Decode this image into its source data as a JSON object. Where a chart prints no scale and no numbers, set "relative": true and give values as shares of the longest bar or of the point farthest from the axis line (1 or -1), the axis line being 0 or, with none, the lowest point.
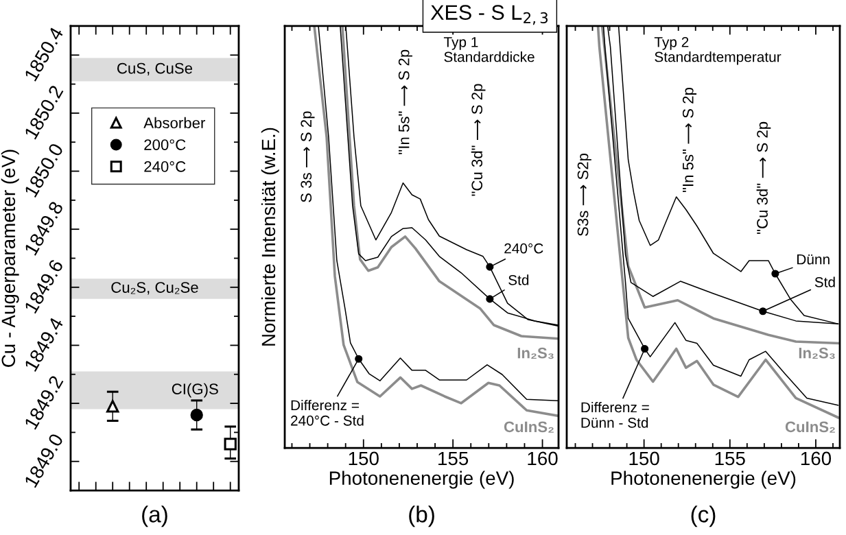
{
  "chart_data": [
    {
      "type": "scatter",
      "subtitle": "(a)",
      "ylabel": "Cu - Augerparameter (eV)",
      "categories": [
        null,
        null,
        null,
        null,
        null,
        null,
        null,
        null,
        null,
        null
      ],
      "ylim": [
        1848.9,
        1850.5
      ],
      "yticks": [
        {
          "value": 1849.0,
          "label": "1849.0"
        },
        {
          "value": 1849.1,
          "label": null
        },
        {
          "value": 1849.2,
          "label": "1849.2"
        },
        {
          "value": 1849.3,
          "label": null
        },
        {
          "value": 1849.4,
          "label": "1849.4"
        },
        {
          "value": 1849.5,
          "label": null
        },
        {
          "value": 1849.6,
          "label": "1849.6"
        },
        {
          "value": 1849.7,
          "label": null
        },
        {
          "value": 1849.8,
          "label": "1849.8"
        },
        {
          "value": 1849.9,
          "label": null
        },
        {
          "value": 1850.0,
          "label": "1850.0"
        },
        {
          "value": 1850.1,
          "label": null
        },
        {
          "value": 1850.2,
          "label": "1850.2"
        },
        {
          "value": 1850.3,
          "label": null
        },
        {
          "value": 1850.4,
          "label": "1850.4"
        }
      ],
      "tick_labels": "y",
      "legend": "top left",
      "grid": false,
      "bands": [
        {
          "axis": "y",
          "from": 1850.31,
          "to": 1850.39,
          "label": "CuS, CuSe",
          "color": "#dcdcdc"
        },
        {
          "axis": "y",
          "from": 1849.56,
          "to": 1849.63,
          "label": "Cu₂S, Cu₂Se",
          "color": "#dcdcdc"
        },
        {
          "axis": "y",
          "from": 1849.18,
          "to": 1849.31,
          "label": "CI(G)S",
          "color": "#dcdcdc"
        }
      ],
      "series": [
        {
          "name": "Absorber",
          "color": "#000000",
          "marker": "triangle",
          "values": [
            null,
            null,
            1849.19,
            null,
            null,
            null,
            null,
            null,
            null,
            null
          ],
          "errors": [
            null,
            null,
            [
              1849.14,
              1849.24
            ],
            null,
            null,
            null,
            null,
            null,
            null,
            null
          ]
        },
        {
          "name": "200°C",
          "color": "#000000",
          "marker": "circle",
          "values": [
            null,
            null,
            null,
            null,
            null,
            null,
            null,
            1849.16,
            null,
            null
          ],
          "errors": [
            null,
            null,
            null,
            null,
            null,
            null,
            null,
            [
              1849.11,
              1849.21
            ],
            null,
            null
          ]
        },
        {
          "name": "240°C",
          "color": "#000000",
          "marker": "square",
          "values": [
            null,
            null,
            null,
            null,
            null,
            null,
            null,
            null,
            null,
            1849.06
          ],
          "errors": [
            null,
            null,
            null,
            null,
            null,
            null,
            null,
            null,
            null,
            [
              1849.01,
              1849.12
            ]
          ]
        }
      ]
    },
    {
      "type": "line",
      "relative": true,
      "title": "XES - S L$_{2,3}$",
      "subtitle": "(b)",
      "xlabel": "Photonenenergie (eV)",
      "ylabel": "Normierte Intensität (w.E.)",
      "xlim": [
        145.6,
        160.9
      ],
      "xticks": [
        {
          "value": 146,
          "label": null
        },
        {
          "value": 147,
          "label": null
        },
        {
          "value": 148,
          "label": null
        },
        {
          "value": 149,
          "label": null
        },
        150,
        {
          "value": 151,
          "label": null
        },
        {
          "value": 152,
          "label": null
        },
        {
          "value": 153,
          "label": null
        },
        {
          "value": 154,
          "label": null
        },
        155,
        {
          "value": 156,
          "label": null
        },
        {
          "value": 157,
          "label": null
        },
        {
          "value": 158,
          "label": null
        },
        {
          "value": 159,
          "label": null
        },
        160
      ],
      "tick_labels": "x",
      "grid": false,
      "annotations": [
        "S 3s ⟶ S 2p",
        "\"In 5s\" ⟶ S 2p",
        "\"Cu 3d\" ⟶ S 2p",
        "Typ 1\nStandarddicke"
      ],
      "series": [
        {
          "name": "240°C",
          "color": "#000000",
          "x": [
            149.01,
            149.47,
            149.85,
            150.69,
            151.56,
            152.21,
            152.71,
            153.17,
            153.63,
            154.24,
            155.76,
            156.68,
            157.06,
            158.05,
            159.2,
            160.88
          ],
          "values": [
            1.0,
            0.737,
            0.574,
            0.493,
            0.558,
            0.628,
            0.6,
            0.59,
            0.541,
            0.502,
            0.47,
            0.454,
            0.429,
            0.343,
            0.304,
            0.289
          ]
        },
        {
          "name": "Std",
          "color": "#000000",
          "x": [
            148.7,
            149.39,
            149.73,
            150.11,
            150.8,
            151.56,
            152.21,
            152.71,
            153.47,
            154.24,
            155.46,
            157.06,
            158.05,
            159.58,
            160.88
          ],
          "values": [
            1.0,
            0.574,
            0.46,
            0.444,
            0.452,
            0.501,
            0.52,
            0.522,
            0.493,
            0.454,
            0.415,
            0.353,
            0.32,
            0.301,
            0.291
          ]
        },
        {
          "name": "In₂S₃",
          "color": "#8c8c8c",
          "x": [
            148.82,
            149.47,
            149.81,
            150.27,
            150.8,
            151.56,
            152.33,
            152.9,
            154.24,
            156.53,
            157.29,
            158.82,
            160.88
          ],
          "values": [
            1.0,
            0.574,
            0.447,
            0.42,
            0.428,
            0.476,
            0.501,
            0.473,
            0.395,
            0.33,
            0.291,
            0.265,
            0.259
          ]
        },
        {
          "name": "CuInS₂",
          "color": "#8c8c8c",
          "x": [
            147.25,
            147.94,
            148.4,
            148.89,
            149.66,
            150.92,
            152.06,
            152.71,
            153.21,
            154.54,
            155.46,
            156.98,
            157.6,
            159.12,
            160.88
          ],
          "values": [
            1.0,
            0.737,
            0.407,
            0.244,
            0.156,
            0.122,
            0.167,
            0.14,
            0.148,
            0.122,
            0.106,
            0.154,
            0.148,
            0.089,
            0.076
          ]
        },
        {
          "name": "Differenz =\n240°C - Std",
          "color": "#000000",
          "x": [
            147.48,
            148.05,
            148.51,
            148.97,
            149.27,
            149.73,
            150.31,
            150.92,
            152.06,
            152.71,
            153.47,
            154.24,
            155.76,
            156.91,
            157.75,
            159.12,
            160.88
          ],
          "values": [
            1.0,
            0.737,
            0.444,
            0.33,
            0.249,
            0.211,
            0.176,
            0.159,
            0.213,
            0.184,
            0.184,
            0.161,
            0.161,
            0.197,
            0.174,
            0.115,
            0.112
          ]
        }
      ]
    },
    {
      "type": "line",
      "relative": true,
      "subtitle": "(c)",
      "xlabel": "Photonenenergie (eV)",
      "xlim": [
        145.5,
        161.4
      ],
      "xticks": [
        {
          "value": 146,
          "label": null
        },
        {
          "value": 147,
          "label": null
        },
        {
          "value": 148,
          "label": null
        },
        {
          "value": 149,
          "label": null
        },
        150,
        {
          "value": 151,
          "label": null
        },
        {
          "value": 152,
          "label": null
        },
        {
          "value": 153,
          "label": null
        },
        {
          "value": 154,
          "label": null
        },
        155,
        {
          "value": 156,
          "label": null
        },
        {
          "value": 157,
          "label": null
        },
        {
          "value": 158,
          "label": null
        },
        {
          "value": 159,
          "label": null
        },
        160,
        {
          "value": 161,
          "label": null
        }
      ],
      "tick_labels": "x",
      "grid": false,
      "annotations": [
        "S3s ⟶ S2p",
        "\"In 5s\" ⟶ S 2p",
        "\"Cu 3d\" ⟶ S 2p",
        "Typ 2\nStandardtemperatur"
      ],
      "series": [
        {
          "name": "Dünn",
          "color": "#000000",
          "x": [
            148.52,
            149.08,
            149.4,
            149.72,
            150.36,
            150.84,
            151.88,
            152.44,
            153.08,
            154.04,
            155.64,
            156.12,
            157.24,
            157.64,
            158.52,
            159.32,
            161.3
          ],
          "values": [
            1.0,
            0.683,
            0.605,
            0.539,
            0.48,
            0.493,
            0.595,
            0.565,
            0.526,
            0.461,
            0.418,
            0.444,
            0.444,
            0.413,
            0.353,
            0.314,
            0.294
          ]
        },
        {
          "name": "Std",
          "color": "#000000",
          "x": [
            147.88,
            148.04,
            148.92,
            149.24,
            150.52,
            152.12,
            154.04,
            156.92,
            158.84,
            161.3
          ],
          "values": [
            1.0,
            0.951,
            0.458,
            0.392,
            0.359,
            0.395,
            0.366,
            0.324,
            0.301,
            0.294
          ]
        },
        {
          "name": "In₂S₃",
          "color": "#8c8c8c",
          "x": [
            147.56,
            149.08,
            150.04,
            151.96,
            154.04,
            157.24,
            158.84,
            161.3
          ],
          "values": [
            1.0,
            0.431,
            0.333,
            0.35,
            0.307,
            0.268,
            0.252,
            0.248
          ]
        },
        {
          "name": "CuInS₂",
          "color": "#8c8c8c",
          "x": [
            147.32,
            147.4,
            148.6,
            149.08,
            149.56,
            150.52,
            151.88,
            152.44,
            153.08,
            154.04,
            155.48,
            157.08,
            158.84,
            161.3
          ],
          "values": [
            1.0,
            0.951,
            0.458,
            0.261,
            0.209,
            0.157,
            0.235,
            0.19,
            0.206,
            0.15,
            0.121,
            0.209,
            0.118,
            0.072
          ]
        },
        {
          "name": "Differenz =\nDünn - Std",
          "color": "#000000",
          "x": [
            147.64,
            147.72,
            148.92,
            149.08,
            150.04,
            150.36,
            151.8,
            152.44,
            153.08,
            154.04,
            155.64,
            156.12,
            157.08,
            158.2,
            159.48,
            161.3
          ],
          "values": [
            1.0,
            0.951,
            0.392,
            0.307,
            0.235,
            0.216,
            0.297,
            0.255,
            0.248,
            0.196,
            0.17,
            0.209,
            0.229,
            0.176,
            0.118,
            0.101
          ]
        }
      ]
    }
  ]
}
